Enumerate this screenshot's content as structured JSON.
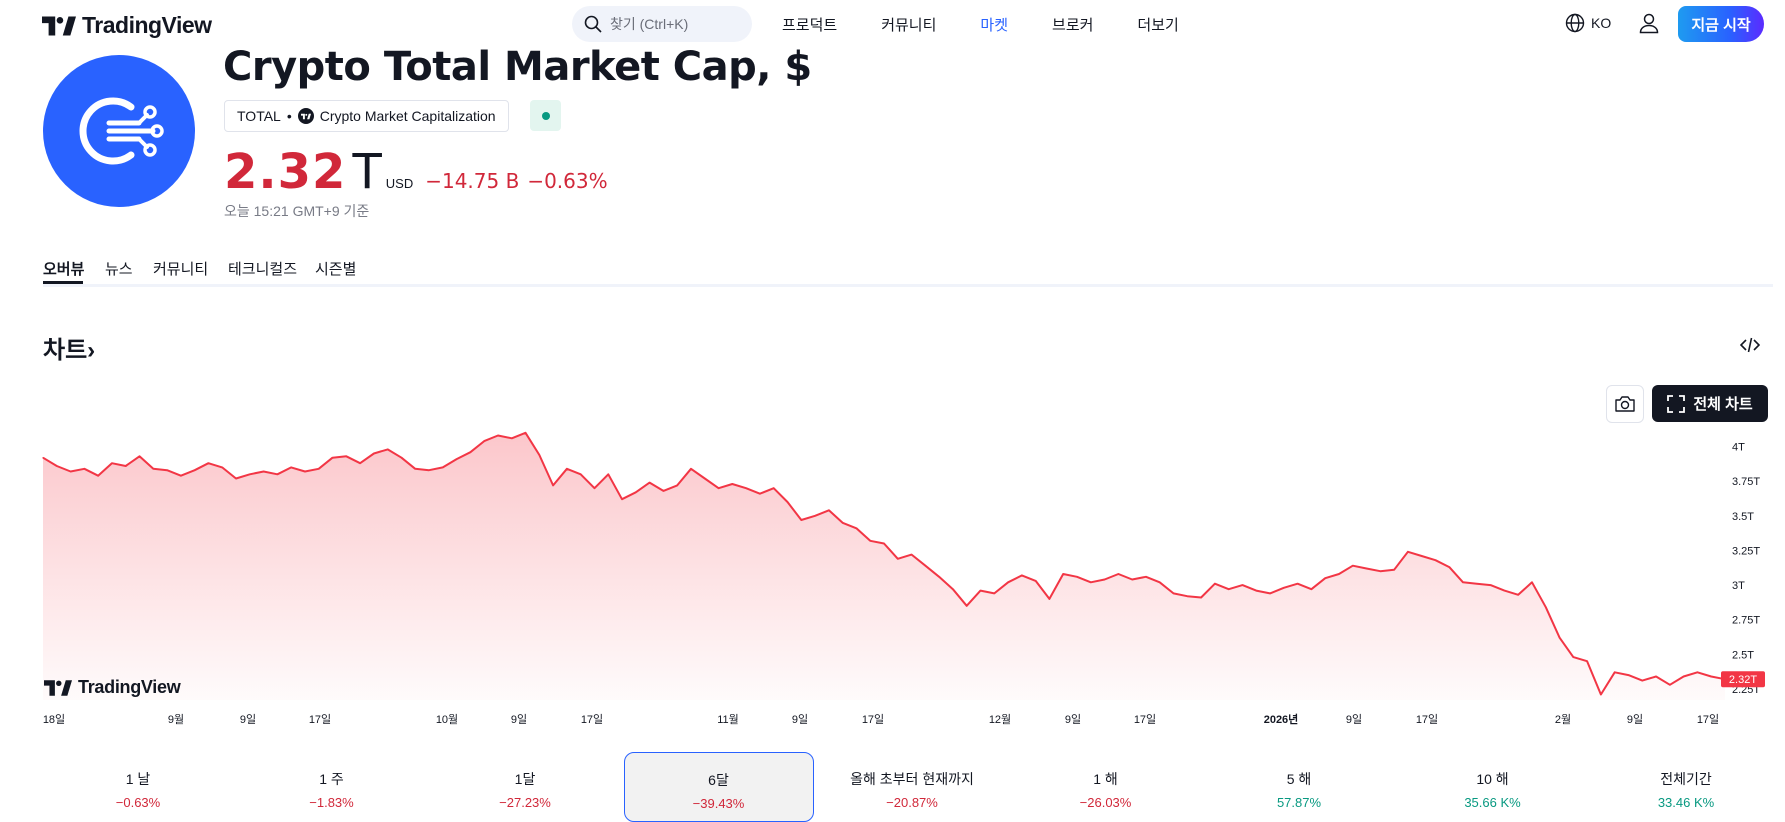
{
  "nav": {
    "logo_text": "TradingView",
    "search_placeholder": "찾기 (Ctrl+K)",
    "menu": [
      {
        "label": "프로덕트",
        "active": false
      },
      {
        "label": "커뮤니티",
        "active": false
      },
      {
        "label": "마켓",
        "active": true
      },
      {
        "label": "브로커",
        "active": false
      },
      {
        "label": "더보기",
        "active": false
      }
    ],
    "language": "KO",
    "start_label": "지금 시작"
  },
  "symbol": {
    "title": "Crypto Total Market Cap, $",
    "ticker": "TOTAL",
    "separator": "•",
    "source": "Crypto Market Capitalization",
    "market_status_color": "#089981"
  },
  "price": {
    "value": "2.32",
    "unit": "T",
    "currency": "USD",
    "change": "−14.75 B",
    "change_pct": "−0.63%",
    "as_of": "오늘 15:21 GMT+9 기준",
    "color": "#d1283a"
  },
  "tabs": [
    {
      "label": "오버뷰",
      "active": true
    },
    {
      "label": "뉴스",
      "active": false
    },
    {
      "label": "커뮤니티",
      "active": false
    },
    {
      "label": "테크니컬즈",
      "active": false
    },
    {
      "label": "시즌별",
      "active": false
    }
  ],
  "chart_section": {
    "title": "차트",
    "title_arrow": "›",
    "fullscreen_label": "전체 차트",
    "watermark": "TradingView"
  },
  "chart_data": {
    "type": "area",
    "title": "",
    "xlabel": "",
    "ylabel": "",
    "x_tick_labels": [
      "18일",
      "9월",
      "9일",
      "17일",
      "10월",
      "9일",
      "17일",
      "11월",
      "9일",
      "17일",
      "12월",
      "9일",
      "17일",
      "2026년",
      "9일",
      "17일",
      "2월",
      "9일",
      "17일"
    ],
    "y_tick_labels": [
      "4T",
      "3.75T",
      "3.5T",
      "3.25T",
      "3T",
      "2.75T",
      "2.5T",
      "2.25T"
    ],
    "y_ticks": [
      4.0,
      3.75,
      3.5,
      3.25,
      3.0,
      2.75,
      2.5,
      2.25
    ],
    "ylim": [
      2.17,
      4.12
    ],
    "last_value_label": "2.32T",
    "line_color": "#f23645",
    "fill_color": "#f23645",
    "series": [
      {
        "values": [
          3.92,
          3.86,
          3.82,
          3.84,
          3.79,
          3.88,
          3.86,
          3.93,
          3.84,
          3.83,
          3.79,
          3.83,
          3.88,
          3.85,
          3.77,
          3.8,
          3.82,
          3.8,
          3.85,
          3.82,
          3.84,
          3.92,
          3.93,
          3.88,
          3.95,
          3.98,
          3.92,
          3.84,
          3.83,
          3.85,
          3.91,
          3.96,
          4.04,
          4.08,
          4.06,
          4.1,
          3.94,
          3.72,
          3.84,
          3.8,
          3.7,
          3.8,
          3.62,
          3.67,
          3.74,
          3.68,
          3.72,
          3.84,
          3.77,
          3.7,
          3.73,
          3.7,
          3.66,
          3.7,
          3.6,
          3.47,
          3.5,
          3.54,
          3.45,
          3.41,
          3.32,
          3.3,
          3.19,
          3.22,
          3.14,
          3.06,
          2.97,
          2.85,
          2.96,
          2.94,
          3.02,
          3.07,
          3.03,
          2.9,
          3.08,
          3.06,
          3.02,
          3.04,
          3.08,
          3.04,
          3.06,
          3.02,
          2.94,
          2.92,
          2.91,
          3.01,
          2.97,
          3.0,
          2.96,
          2.94,
          2.98,
          3.01,
          2.97,
          3.05,
          3.08,
          3.14,
          3.12,
          3.1,
          3.11,
          3.24,
          3.21,
          3.18,
          3.13,
          3.02,
          3.01,
          3.0,
          2.96,
          2.93,
          3.02,
          2.84,
          2.62,
          2.48,
          2.45,
          2.21,
          2.37,
          2.35,
          2.31,
          2.34,
          2.28,
          2.34,
          2.37,
          2.34,
          2.32
        ]
      }
    ],
    "legend": "none",
    "grid": false
  },
  "periods": [
    {
      "label": "1 날",
      "value": "−0.63%",
      "dir": "neg",
      "selected": false
    },
    {
      "label": "1 주",
      "value": "−1.83%",
      "dir": "neg",
      "selected": false
    },
    {
      "label": "1달",
      "value": "−27.23%",
      "dir": "neg",
      "selected": false
    },
    {
      "label": "6달",
      "value": "−39.43%",
      "dir": "neg",
      "selected": true
    },
    {
      "label": "올해 초부터 현재까지",
      "value": "−20.87%",
      "dir": "neg",
      "selected": false
    },
    {
      "label": "1 해",
      "value": "−26.03%",
      "dir": "neg",
      "selected": false
    },
    {
      "label": "5 해",
      "value": "57.87%",
      "dir": "pos",
      "selected": false
    },
    {
      "label": "10 해",
      "value": "35.66 K%",
      "dir": "pos",
      "selected": false
    },
    {
      "label": "전체기간",
      "value": "33.46 K%",
      "dir": "pos",
      "selected": false
    }
  ]
}
